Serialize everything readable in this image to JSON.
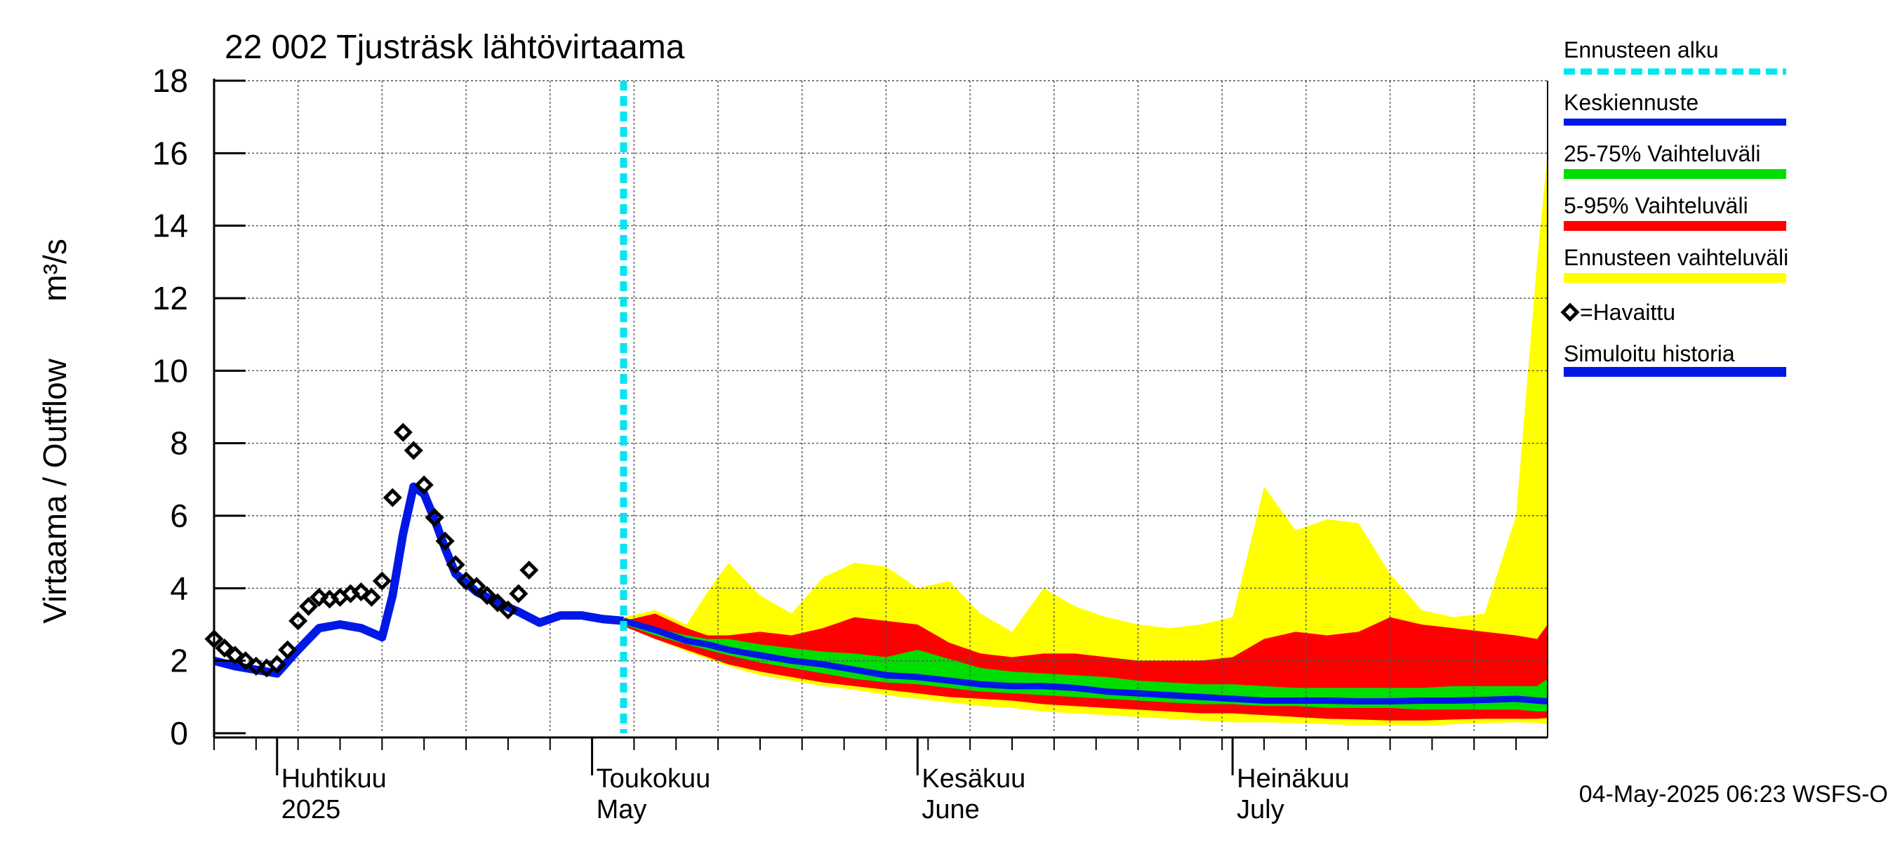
{
  "chart_data": {
    "type": "area",
    "title": "22 002 Tjusträsk lähtövirtaama",
    "ylabel": "Virtaama / Outflow",
    "yunit": "m³/s",
    "ylim": [
      0,
      18
    ],
    "yticks": [
      0,
      2,
      4,
      6,
      8,
      10,
      12,
      14,
      16,
      18
    ],
    "xlim": [
      "2025-03-26",
      "2025-07-31"
    ],
    "grid": true,
    "month_labels": [
      {
        "date": "2025-04-01",
        "fi": "Huhtikuu",
        "en": "2025"
      },
      {
        "date": "2025-05-01",
        "fi": "Toukokuu",
        "en": "May"
      },
      {
        "date": "2025-06-01",
        "fi": "Kesäkuu",
        "en": "June"
      },
      {
        "date": "2025-07-01",
        "fi": "Heinäkuu",
        "en": "July"
      }
    ],
    "forecast_start": "2025-05-04",
    "legend_placement": "right",
    "legend": [
      {
        "label": "Ennusteen alku",
        "color": "#00e5ee",
        "style": "dotted"
      },
      {
        "label": "Keskiennuste",
        "color": "#0018e6",
        "style": "line"
      },
      {
        "label": "25-75% Vaihteluväli",
        "color": "#00dd00",
        "style": "line"
      },
      {
        "label": "5-95% Vaihteluväli",
        "color": "#ff0000",
        "style": "line"
      },
      {
        "label": "Ennusteen vaihteluväli",
        "color": "#ffff00",
        "style": "line"
      },
      {
        "label": "=Havaittu",
        "color": "#000000",
        "style": "marker"
      },
      {
        "label": "Simuloitu historia",
        "color": "#0018e6",
        "style": "line"
      }
    ],
    "observed": {
      "name": "Havaittu",
      "x": [
        "2025-03-26",
        "2025-03-27",
        "2025-03-28",
        "2025-03-29",
        "2025-03-30",
        "2025-03-31",
        "2025-04-01",
        "2025-04-02",
        "2025-04-03",
        "2025-04-04",
        "2025-04-05",
        "2025-04-06",
        "2025-04-07",
        "2025-04-08",
        "2025-04-09",
        "2025-04-10",
        "2025-04-11",
        "2025-04-12",
        "2025-04-13",
        "2025-04-14",
        "2025-04-15",
        "2025-04-16",
        "2025-04-17",
        "2025-04-18",
        "2025-04-19",
        "2025-04-20",
        "2025-04-21",
        "2025-04-22",
        "2025-04-23",
        "2025-04-24",
        "2025-04-25",
        "2025-04-26",
        "2025-04-27",
        "2025-04-28",
        "2025-04-29",
        "2025-04-30",
        "2025-05-01",
        "2025-05-02",
        "2025-05-03"
      ],
      "y": [
        2.6,
        2.35,
        2.15,
        2.0,
        1.85,
        1.8,
        1.9,
        2.3,
        3.1,
        3.5,
        3.75,
        3.7,
        3.75,
        3.85,
        3.9,
        3.75,
        4.2,
        6.5,
        8.3,
        7.8,
        6.85,
        5.95,
        5.3,
        4.65,
        4.2,
        4.05,
        3.8,
        3.6,
        3.4,
        3.85,
        4.5,
        null,
        null,
        null,
        null,
        null,
        null,
        null,
        null
      ]
    },
    "simulated_history": {
      "name": "Simuloitu historia",
      "x": [
        "2025-03-26",
        "2025-03-28",
        "2025-03-30",
        "2025-04-01",
        "2025-04-03",
        "2025-04-05",
        "2025-04-07",
        "2025-04-09",
        "2025-04-11",
        "2025-04-12",
        "2025-04-13",
        "2025-04-14",
        "2025-04-15",
        "2025-04-16",
        "2025-04-17",
        "2025-04-18",
        "2025-04-20",
        "2025-04-22",
        "2025-04-24",
        "2025-04-26",
        "2025-04-28",
        "2025-04-30",
        "2025-05-02",
        "2025-05-04"
      ],
      "y": [
        2.0,
        1.85,
        1.75,
        1.65,
        2.3,
        2.9,
        3.0,
        2.9,
        2.65,
        3.8,
        5.5,
        6.8,
        6.6,
        5.9,
        5.1,
        4.4,
        3.9,
        3.6,
        3.35,
        3.05,
        3.25,
        3.25,
        3.15,
        3.1
      ]
    },
    "forecast": {
      "x": [
        "2025-05-04",
        "2025-05-07",
        "2025-05-10",
        "2025-05-12",
        "2025-05-14",
        "2025-05-17",
        "2025-05-20",
        "2025-05-23",
        "2025-05-26",
        "2025-05-29",
        "2025-06-01",
        "2025-06-04",
        "2025-06-07",
        "2025-06-10",
        "2025-06-13",
        "2025-06-16",
        "2025-06-19",
        "2025-06-22",
        "2025-06-25",
        "2025-06-28",
        "2025-07-01",
        "2025-07-04",
        "2025-07-07",
        "2025-07-10",
        "2025-07-13",
        "2025-07-16",
        "2025-07-19",
        "2025-07-22",
        "2025-07-25",
        "2025-07-28",
        "2025-07-30",
        "2025-07-31"
      ],
      "ennuste_max": [
        3.2,
        3.4,
        3.0,
        3.9,
        4.7,
        3.8,
        3.3,
        4.3,
        4.7,
        4.6,
        4.0,
        4.2,
        3.3,
        2.8,
        4.0,
        3.5,
        3.2,
        3.0,
        2.9,
        3.0,
        3.2,
        6.8,
        5.6,
        5.9,
        5.8,
        4.4,
        3.4,
        3.2,
        3.3,
        6.0,
        13.0,
        16.0
      ],
      "p95": [
        3.1,
        3.3,
        2.9,
        2.7,
        2.7,
        2.8,
        2.7,
        2.9,
        3.2,
        3.1,
        3.0,
        2.5,
        2.2,
        2.1,
        2.2,
        2.2,
        2.1,
        2.0,
        2.0,
        2.0,
        2.1,
        2.6,
        2.8,
        2.7,
        2.8,
        3.2,
        3.0,
        2.9,
        2.8,
        2.7,
        2.6,
        3.0
      ],
      "p75": [
        3.05,
        2.9,
        2.7,
        2.6,
        2.6,
        2.45,
        2.35,
        2.25,
        2.2,
        2.1,
        2.3,
        2.05,
        1.8,
        1.7,
        1.65,
        1.6,
        1.55,
        1.45,
        1.4,
        1.35,
        1.35,
        1.3,
        1.25,
        1.25,
        1.25,
        1.25,
        1.25,
        1.3,
        1.3,
        1.3,
        1.3,
        1.5
      ],
      "median": [
        3.1,
        2.85,
        2.55,
        2.45,
        2.3,
        2.15,
        2.0,
        1.9,
        1.75,
        1.6,
        1.55,
        1.45,
        1.35,
        1.3,
        1.3,
        1.25,
        1.15,
        1.1,
        1.05,
        1.0,
        0.95,
        0.9,
        0.9,
        0.9,
        0.88,
        0.88,
        0.9,
        0.9,
        0.92,
        0.95,
        0.9,
        0.88
      ],
      "p25": [
        3.0,
        2.7,
        2.45,
        2.3,
        2.15,
        1.95,
        1.8,
        1.65,
        1.5,
        1.4,
        1.35,
        1.25,
        1.15,
        1.1,
        1.05,
        1.0,
        0.95,
        0.9,
        0.85,
        0.8,
        0.8,
        0.75,
        0.75,
        0.7,
        0.7,
        0.7,
        0.65,
        0.65,
        0.65,
        0.65,
        0.6,
        0.6
      ],
      "p5": [
        2.95,
        2.6,
        2.3,
        2.1,
        1.9,
        1.7,
        1.55,
        1.4,
        1.3,
        1.2,
        1.1,
        1.0,
        0.95,
        0.9,
        0.8,
        0.75,
        0.7,
        0.65,
        0.6,
        0.55,
        0.55,
        0.5,
        0.45,
        0.4,
        0.38,
        0.35,
        0.35,
        0.38,
        0.4,
        0.4,
        0.4,
        0.42
      ],
      "ennuste_min": [
        2.95,
        2.6,
        2.25,
        2.05,
        1.85,
        1.6,
        1.45,
        1.3,
        1.2,
        1.05,
        0.95,
        0.85,
        0.75,
        0.7,
        0.6,
        0.55,
        0.5,
        0.45,
        0.4,
        0.35,
        0.3,
        0.3,
        0.28,
        0.25,
        0.22,
        0.22,
        0.2,
        0.25,
        0.28,
        0.3,
        0.28,
        0.25
      ]
    },
    "footer": "04-May-2025 06:23 WSFS-O"
  }
}
